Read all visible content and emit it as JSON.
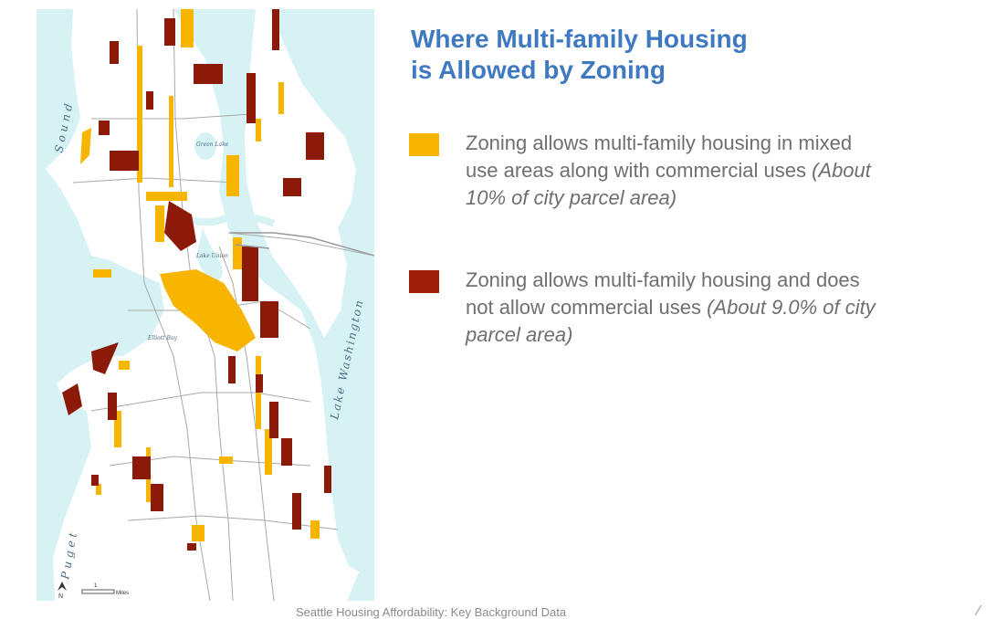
{
  "title": {
    "line1": "Where Multi-family Housing",
    "line2": "is Allowed by Zoning"
  },
  "legend": {
    "items": [
      {
        "id": "mixed-use",
        "color": "#f7b500",
        "text": "Zoning allows multi-family housing in mixed use areas along with commercial uses ",
        "note": "(About 10% of city parcel area)"
      },
      {
        "id": "residential-only",
        "color": "#a01f0a",
        "text": "Zoning allows multi-family housing and does not allow commercial uses ",
        "note": "(About 9.0% of city parcel area)"
      }
    ]
  },
  "map": {
    "colors": {
      "water": "#d6f2f4",
      "land": "#ffffff",
      "mixed_use": "#f7b500",
      "residential": "#8c1a08",
      "roads": "#a0a0a0"
    },
    "water_labels": {
      "sound": "Sound",
      "puget": "Puget",
      "lake_washington": "Lake Washington",
      "green_lake": "Green Lake",
      "lake_union": "Lake Union",
      "elliott_bay": "Elliott Bay"
    },
    "north_label": "N",
    "scale_label": "1",
    "scale_unit": "Miles"
  },
  "footer": "Seattle Housing Affordability: Key Background Data"
}
